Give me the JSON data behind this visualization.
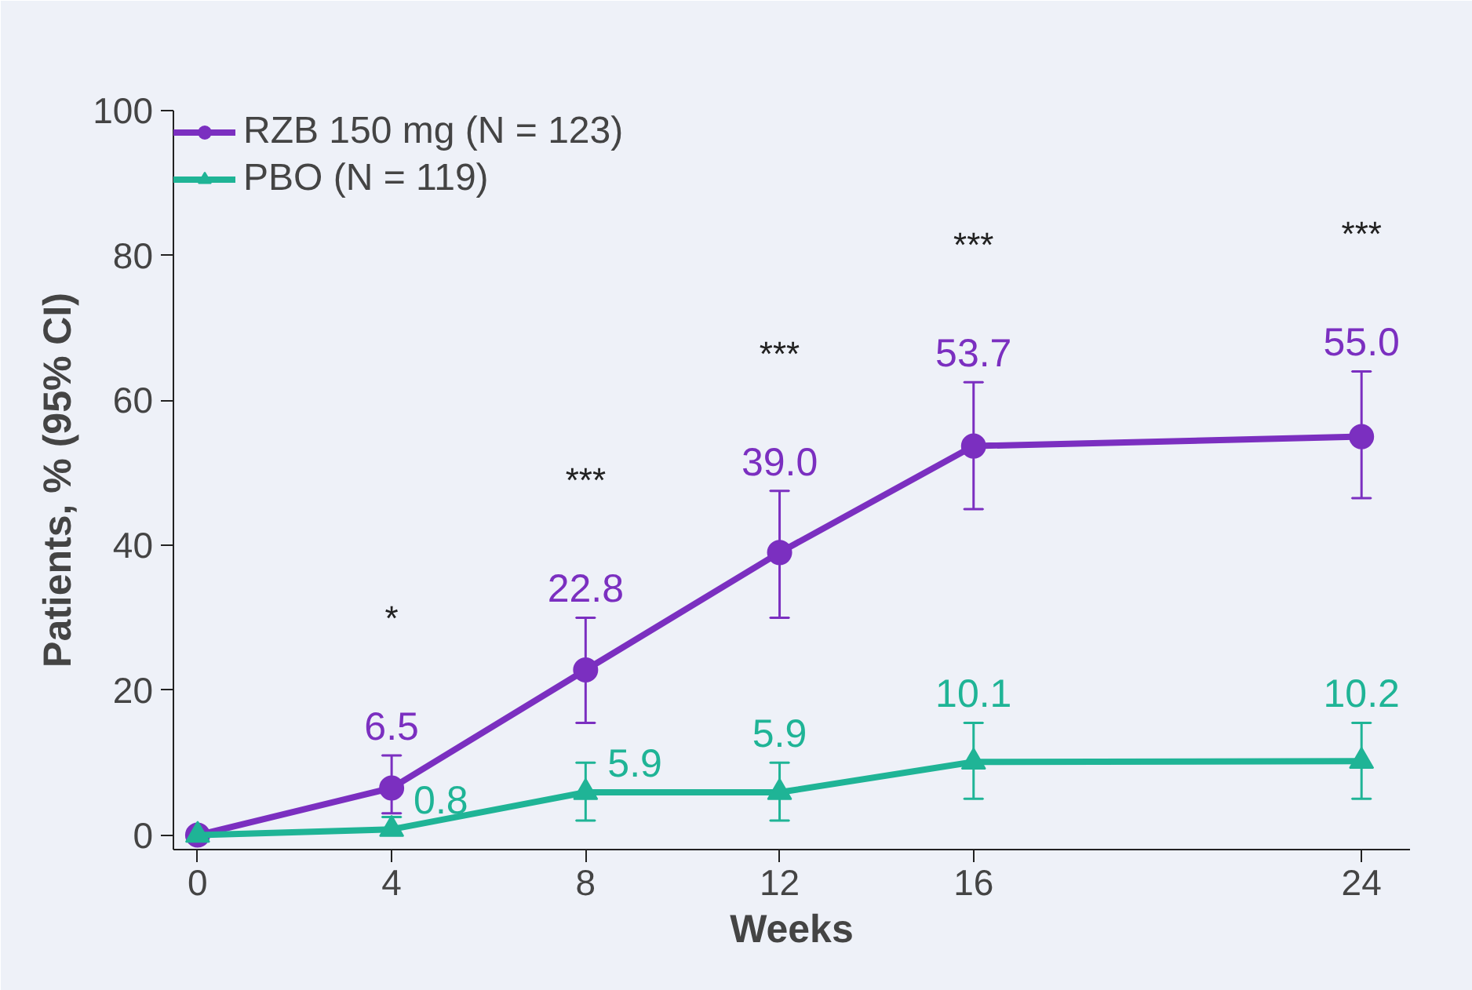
{
  "chart_data": {
    "type": "line",
    "xlabel": "Weeks",
    "ylabel": "Patients, % (95% CI)",
    "x": [
      0,
      4,
      8,
      12,
      16,
      24
    ],
    "xlim": [
      -0.5,
      25
    ],
    "xticks": [
      0,
      4,
      8,
      12,
      16,
      24
    ],
    "ylim": [
      -2,
      100
    ],
    "yticks": [
      0,
      20,
      40,
      60,
      80,
      100
    ],
    "series": [
      {
        "name": "RZB 150 mg (N = 123)",
        "color": "#7b2fc0",
        "marker": "circle",
        "values": [
          0,
          6.5,
          22.8,
          39.0,
          53.7,
          55.0
        ],
        "value_labels": [
          null,
          "6.5",
          "22.8",
          "39.0",
          "53.7",
          "55.0"
        ],
        "errors": [
          null,
          [
            3,
            11
          ],
          [
            15.5,
            30
          ],
          [
            30,
            47.5
          ],
          [
            45,
            62.5
          ],
          [
            46.5,
            64
          ]
        ]
      },
      {
        "name": "PBO (N = 119)",
        "color": "#1fb496",
        "marker": "triangle",
        "values": [
          0,
          0.8,
          5.9,
          5.9,
          10.1,
          10.2
        ],
        "value_labels": [
          null,
          "0.8",
          "5.9",
          "5.9",
          "10.1",
          "10.2"
        ],
        "errors": [
          null,
          [
            0,
            2.5
          ],
          [
            2,
            10
          ],
          [
            2,
            10
          ],
          [
            5,
            15.5
          ],
          [
            5,
            15.5
          ]
        ]
      }
    ],
    "annotations": [
      "*",
      "***",
      "***",
      "***",
      "***"
    ],
    "legend": "top left",
    "grid": false,
    "line_style": "solid"
  }
}
